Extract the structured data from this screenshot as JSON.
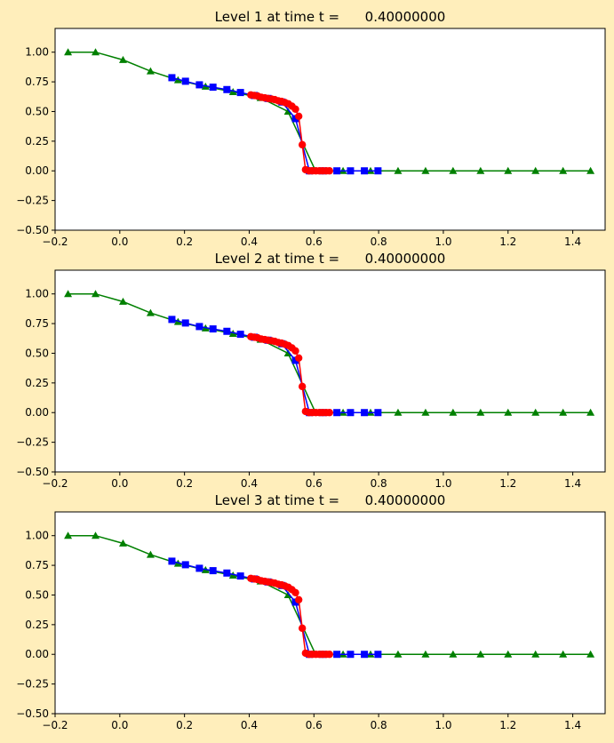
{
  "figure": {
    "background": "#ffeebb"
  },
  "chart_data": [
    {
      "type": "line",
      "title": "Level 1 at time t =      0.40000000",
      "xlabel": "",
      "ylabel": "",
      "xlim": [
        -0.2,
        1.5
      ],
      "ylim": [
        -0.5,
        1.2
      ],
      "xticks": [
        -0.2,
        0.0,
        0.2,
        0.4,
        0.6,
        0.8,
        1.0,
        1.2,
        1.4
      ],
      "xtick_labels": [
        "−0.2",
        "0.0",
        "0.2",
        "0.4",
        "0.6",
        "0.8",
        "1.0",
        "1.2",
        "1.4"
      ],
      "yticks": [
        -0.5,
        -0.25,
        0.0,
        0.25,
        0.5,
        0.75,
        1.0
      ],
      "ytick_labels": [
        "−0.50",
        "−0.25",
        "0.00",
        "0.25",
        "0.50",
        "0.75",
        "1.00"
      ],
      "grid": false,
      "series": [
        {
          "color": "#008000",
          "marker": "triangle",
          "x": [
            -0.16,
            -0.075,
            0.01,
            0.095,
            0.18,
            0.265,
            0.35,
            0.435,
            0.52,
            0.605,
            0.69,
            0.775,
            0.86,
            0.945,
            1.03,
            1.115,
            1.2,
            1.285,
            1.37,
            1.455
          ],
          "y": [
            1.0,
            1.0,
            0.935,
            0.84,
            0.765,
            0.71,
            0.665,
            0.615,
            0.5,
            0.0,
            0.0,
            0.0,
            0.0,
            0.0,
            0.0,
            0.0,
            0.0,
            0.0,
            0.0,
            0.0
          ]
        },
        {
          "color": "#0000ff",
          "marker": "square",
          "x": [
            0.161,
            0.203,
            0.246,
            0.288,
            0.331,
            0.373,
            0.416,
            0.458,
            0.501,
            0.543,
            0.586,
            0.628,
            0.671,
            0.713,
            0.756,
            0.798
          ],
          "y": [
            0.785,
            0.755,
            0.725,
            0.705,
            0.685,
            0.66,
            0.635,
            0.61,
            0.58,
            0.44,
            0.0,
            0.0,
            0.0,
            0.0,
            0.0,
            0.0
          ]
        },
        {
          "color": "#ff0000",
          "marker": "circle",
          "x": [
            0.405,
            0.416,
            0.426,
            0.437,
            0.448,
            0.458,
            0.469,
            0.479,
            0.49,
            0.5,
            0.511,
            0.521,
            0.532,
            0.543,
            0.553,
            0.564,
            0.574,
            0.585,
            0.595,
            0.606,
            0.617,
            0.627,
            0.638,
            0.648
          ],
          "y": [
            0.64,
            0.635,
            0.63,
            0.62,
            0.615,
            0.61,
            0.605,
            0.6,
            0.59,
            0.585,
            0.575,
            0.565,
            0.545,
            0.52,
            0.46,
            0.22,
            0.01,
            0.0,
            0.0,
            0.0,
            0.0,
            0.0,
            0.0,
            0.0
          ]
        }
      ]
    },
    {
      "type": "line",
      "title": "Level 2 at time t =      0.40000000",
      "xlabel": "",
      "ylabel": "",
      "xlim": [
        -0.2,
        1.5
      ],
      "ylim": [
        -0.5,
        1.2
      ],
      "xticks": [
        -0.2,
        0.0,
        0.2,
        0.4,
        0.6,
        0.8,
        1.0,
        1.2,
        1.4
      ],
      "xtick_labels": [
        "−0.2",
        "0.0",
        "0.2",
        "0.4",
        "0.6",
        "0.8",
        "1.0",
        "1.2",
        "1.4"
      ],
      "yticks": [
        -0.5,
        -0.25,
        0.0,
        0.25,
        0.5,
        0.75,
        1.0
      ],
      "ytick_labels": [
        "−0.50",
        "−0.25",
        "0.00",
        "0.25",
        "0.50",
        "0.75",
        "1.00"
      ],
      "grid": false,
      "series": [
        {
          "color": "#008000",
          "marker": "triangle",
          "x": [
            -0.16,
            -0.075,
            0.01,
            0.095,
            0.18,
            0.265,
            0.35,
            0.435,
            0.52,
            0.605,
            0.69,
            0.775,
            0.86,
            0.945,
            1.03,
            1.115,
            1.2,
            1.285,
            1.37,
            1.455
          ],
          "y": [
            1.0,
            1.0,
            0.935,
            0.84,
            0.765,
            0.71,
            0.665,
            0.615,
            0.5,
            0.0,
            0.0,
            0.0,
            0.0,
            0.0,
            0.0,
            0.0,
            0.0,
            0.0,
            0.0,
            0.0
          ]
        },
        {
          "color": "#0000ff",
          "marker": "square",
          "x": [
            0.161,
            0.203,
            0.246,
            0.288,
            0.331,
            0.373,
            0.416,
            0.458,
            0.501,
            0.543,
            0.586,
            0.628,
            0.671,
            0.713,
            0.756,
            0.798
          ],
          "y": [
            0.785,
            0.755,
            0.725,
            0.705,
            0.685,
            0.66,
            0.635,
            0.61,
            0.58,
            0.44,
            0.0,
            0.0,
            0.0,
            0.0,
            0.0,
            0.0
          ]
        },
        {
          "color": "#ff0000",
          "marker": "circle",
          "x": [
            0.405,
            0.416,
            0.426,
            0.437,
            0.448,
            0.458,
            0.469,
            0.479,
            0.49,
            0.5,
            0.511,
            0.521,
            0.532,
            0.543,
            0.553,
            0.564,
            0.574,
            0.585,
            0.595,
            0.606,
            0.617,
            0.627,
            0.638,
            0.648
          ],
          "y": [
            0.64,
            0.635,
            0.63,
            0.62,
            0.615,
            0.61,
            0.605,
            0.6,
            0.59,
            0.585,
            0.575,
            0.565,
            0.545,
            0.52,
            0.46,
            0.22,
            0.01,
            0.0,
            0.0,
            0.0,
            0.0,
            0.0,
            0.0,
            0.0
          ]
        }
      ]
    },
    {
      "type": "line",
      "title": "Level 3 at time t =      0.40000000",
      "xlabel": "",
      "ylabel": "",
      "xlim": [
        -0.2,
        1.5
      ],
      "ylim": [
        -0.5,
        1.2
      ],
      "xticks": [
        -0.2,
        0.0,
        0.2,
        0.4,
        0.6,
        0.8,
        1.0,
        1.2,
        1.4
      ],
      "xtick_labels": [
        "−0.2",
        "0.0",
        "0.2",
        "0.4",
        "0.6",
        "0.8",
        "1.0",
        "1.2",
        "1.4"
      ],
      "yticks": [
        -0.5,
        -0.25,
        0.0,
        0.25,
        0.5,
        0.75,
        1.0
      ],
      "ytick_labels": [
        "−0.50",
        "−0.25",
        "0.00",
        "0.25",
        "0.50",
        "0.75",
        "1.00"
      ],
      "grid": false,
      "series": [
        {
          "color": "#008000",
          "marker": "triangle",
          "x": [
            -0.16,
            -0.075,
            0.01,
            0.095,
            0.18,
            0.265,
            0.35,
            0.435,
            0.52,
            0.605,
            0.69,
            0.775,
            0.86,
            0.945,
            1.03,
            1.115,
            1.2,
            1.285,
            1.37,
            1.455
          ],
          "y": [
            1.0,
            1.0,
            0.935,
            0.84,
            0.765,
            0.71,
            0.665,
            0.615,
            0.5,
            0.0,
            0.0,
            0.0,
            0.0,
            0.0,
            0.0,
            0.0,
            0.0,
            0.0,
            0.0,
            0.0
          ]
        },
        {
          "color": "#0000ff",
          "marker": "square",
          "x": [
            0.161,
            0.203,
            0.246,
            0.288,
            0.331,
            0.373,
            0.416,
            0.458,
            0.501,
            0.543,
            0.586,
            0.628,
            0.671,
            0.713,
            0.756,
            0.798
          ],
          "y": [
            0.785,
            0.755,
            0.725,
            0.705,
            0.685,
            0.66,
            0.635,
            0.61,
            0.58,
            0.44,
            0.0,
            0.0,
            0.0,
            0.0,
            0.0,
            0.0
          ]
        },
        {
          "color": "#ff0000",
          "marker": "circle",
          "x": [
            0.405,
            0.416,
            0.426,
            0.437,
            0.448,
            0.458,
            0.469,
            0.479,
            0.49,
            0.5,
            0.511,
            0.521,
            0.532,
            0.543,
            0.553,
            0.564,
            0.574,
            0.585,
            0.595,
            0.606,
            0.617,
            0.627,
            0.638,
            0.648
          ],
          "y": [
            0.64,
            0.635,
            0.63,
            0.62,
            0.615,
            0.61,
            0.605,
            0.6,
            0.59,
            0.585,
            0.575,
            0.565,
            0.545,
            0.52,
            0.46,
            0.22,
            0.01,
            0.0,
            0.0,
            0.0,
            0.0,
            0.0,
            0.0,
            0.0
          ]
        }
      ]
    }
  ]
}
